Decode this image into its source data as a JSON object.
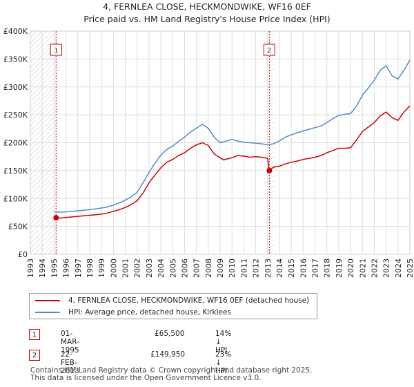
{
  "chart_data": {
    "type": "line",
    "title": "4, FERNLEA CLOSE, HECKMONDWIKE, WF16 0EF",
    "subtitle": "Price paid vs. HM Land Registry's House Price Index (HPI)",
    "xlabel": "",
    "ylabel": "",
    "xlim": [
      1993,
      2025
    ],
    "ylim": [
      0,
      400000
    ],
    "y_ticks": [
      0,
      50000,
      100000,
      150000,
      200000,
      250000,
      300000,
      350000,
      400000
    ],
    "y_tick_labels": [
      "£0",
      "£50K",
      "£100K",
      "£150K",
      "£200K",
      "£250K",
      "£300K",
      "£350K",
      "£400K"
    ],
    "x_ticks": [
      1993,
      1994,
      1995,
      1996,
      1997,
      1998,
      1999,
      2000,
      2001,
      2002,
      2003,
      2004,
      2005,
      2006,
      2007,
      2008,
      2009,
      2010,
      2011,
      2012,
      2013,
      2014,
      2015,
      2016,
      2017,
      2018,
      2019,
      2020,
      2021,
      2022,
      2023,
      2024,
      2025
    ],
    "x_tick_labels": [
      "1993",
      "1994",
      "1995",
      "1996",
      "1997",
      "1998",
      "1999",
      "2000",
      "2001",
      "2002",
      "2003",
      "2004",
      "2005",
      "2006",
      "2007",
      "2008",
      "2009",
      "2010",
      "2011",
      "2012",
      "2013",
      "2014",
      "2015",
      "2016",
      "2017",
      "2018",
      "2019",
      "2020",
      "2021",
      "2022",
      "2023",
      "2024",
      "2025"
    ],
    "grid": true,
    "series": [
      {
        "name": "4, FERNLEA CLOSE, HECKMONDWIKE, WF16 0EF (detached house)",
        "color": "#cc0000",
        "x": [
          1995.17,
          1995.5,
          1996.0,
          1996.5,
          1997.0,
          1997.5,
          1998.0,
          1998.5,
          1999.0,
          1999.5,
          2000.0,
          2000.5,
          2001.0,
          2001.5,
          2002.0,
          2002.5,
          2003.0,
          2003.5,
          2004.0,
          2004.5,
          2005.0,
          2005.5,
          2006.0,
          2006.5,
          2007.0,
          2007.5,
          2008.0,
          2008.5,
          2009.0,
          2009.3,
          2009.6,
          2010.0,
          2010.5,
          2011.0,
          2011.5,
          2012.0,
          2012.5,
          2013.0,
          2013.15,
          2013.5,
          2014.0,
          2014.5,
          2015.0,
          2015.5,
          2016.0,
          2016.5,
          2017.0,
          2017.5,
          2018.0,
          2018.5,
          2019.0,
          2019.5,
          2020.0,
          2020.5,
          2021.0,
          2021.5,
          2022.0,
          2022.5,
          2023.0,
          2023.5,
          2024.0,
          2024.5,
          2025.0
        ],
        "values": [
          65500,
          65000,
          66000,
          67000,
          68000,
          69000,
          70000,
          71000,
          72000,
          74000,
          77000,
          80000,
          84000,
          89000,
          96000,
          110000,
          128000,
          142000,
          155000,
          165000,
          170000,
          177000,
          182000,
          190000,
          196000,
          200000,
          195000,
          180000,
          173000,
          169000,
          171000,
          173000,
          177000,
          176000,
          174000,
          175000,
          174000,
          172000,
          149950,
          156000,
          158000,
          162000,
          165000,
          167000,
          170000,
          172000,
          174000,
          177000,
          182000,
          186000,
          190000,
          190000,
          191000,
          205000,
          220000,
          228000,
          236000,
          248000,
          255000,
          245000,
          240000,
          255000,
          266000
        ]
      },
      {
        "name": "HPI: Average price, detached house, Kirklees",
        "color": "#5588cc",
        "x": [
          1995.0,
          1995.5,
          1996.0,
          1996.5,
          1997.0,
          1997.5,
          1998.0,
          1998.5,
          1999.0,
          1999.5,
          2000.0,
          2000.5,
          2001.0,
          2001.5,
          2002.0,
          2002.5,
          2003.0,
          2003.5,
          2004.0,
          2004.5,
          2005.0,
          2005.5,
          2006.0,
          2006.5,
          2007.0,
          2007.5,
          2008.0,
          2008.5,
          2009.0,
          2009.5,
          2010.0,
          2010.5,
          2011.0,
          2011.5,
          2012.0,
          2012.5,
          2013.0,
          2013.5,
          2014.0,
          2014.5,
          2015.0,
          2015.5,
          2016.0,
          2016.5,
          2017.0,
          2017.5,
          2018.0,
          2018.5,
          2019.0,
          2019.5,
          2020.0,
          2020.5,
          2021.0,
          2021.5,
          2022.0,
          2022.5,
          2023.0,
          2023.5,
          2024.0,
          2024.5,
          2025.0
        ],
        "values": [
          76000,
          75500,
          76000,
          77000,
          78000,
          79000,
          80000,
          81500,
          83000,
          85000,
          88000,
          92000,
          97000,
          103000,
          111000,
          128000,
          147000,
          163000,
          178000,
          188000,
          194000,
          202000,
          210000,
          219000,
          226000,
          233000,
          226000,
          210000,
          200000,
          203000,
          206000,
          203000,
          201000,
          200000,
          199000,
          198000,
          196000,
          198000,
          203000,
          210000,
          214000,
          218000,
          221000,
          224000,
          227000,
          230000,
          236000,
          243000,
          249000,
          251000,
          252000,
          266000,
          285000,
          298000,
          312000,
          330000,
          338000,
          320000,
          314000,
          330000,
          348000
        ]
      }
    ],
    "annotations": [
      {
        "label": "1",
        "x": 1995.17
      },
      {
        "label": "2",
        "x": 2013.15
      }
    ],
    "sale_points": [
      {
        "x": 1995.17,
        "y": 65500
      },
      {
        "x": 2013.15,
        "y": 149950
      }
    ],
    "hatched_regions": [
      [
        1993,
        1995.17
      ],
      [
        2013.15,
        2013.5
      ]
    ]
  },
  "legend": {
    "items": [
      {
        "label": "4, FERNLEA CLOSE, HECKMONDWIKE, WF16 0EF (detached house)",
        "color": "#cc0000"
      },
      {
        "label": "HPI: Average price, detached house, Kirklees",
        "color": "#5588cc"
      }
    ]
  },
  "sales": [
    {
      "num": "1",
      "date": "01-MAR-1995",
      "price": "£65,500",
      "hpi": "14% ↓ HPI"
    },
    {
      "num": "2",
      "date": "22-FEB-2013",
      "price": "£149,950",
      "hpi": "23% ↓ HPI"
    }
  ],
  "footer": {
    "line1": "Contains HM Land Registry data © Crown copyright and database right 2025.",
    "line2": "This data is licensed under the Open Government Licence v3.0."
  }
}
